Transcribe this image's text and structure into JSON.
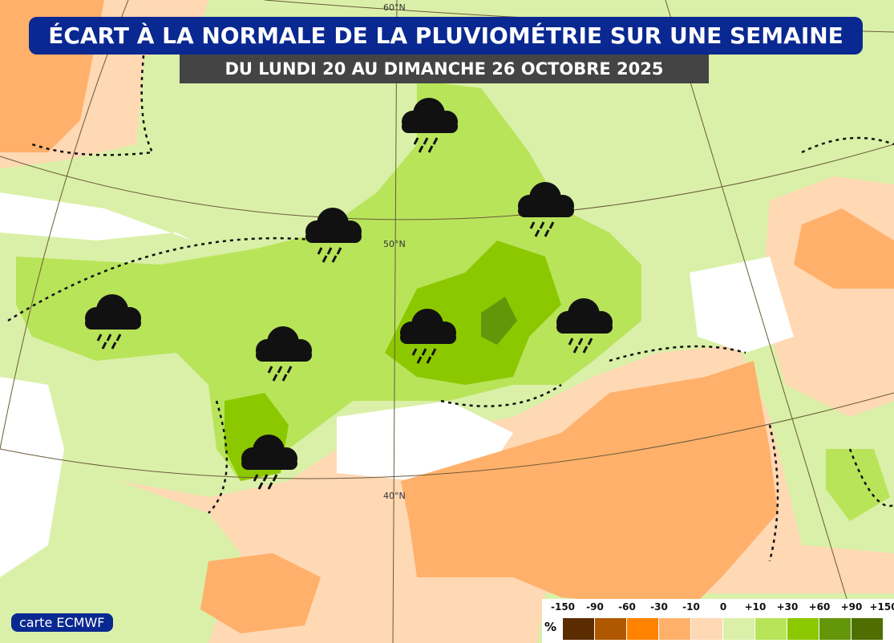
{
  "header": {
    "title": "ÉCART À LA NORMALE DE LA PLUVIOMÉTRIE SUR UNE SEMAINE",
    "subtitle": "DU LUNDI 20 AU DIMANCHE 26 OCTOBRE 2025"
  },
  "source": "carte ECMWF",
  "map": {
    "latitude_labels": [
      "60°N",
      "50°N",
      "40°N"
    ],
    "icon": "rain-cloud-icon",
    "rain_icon_count": 8
  },
  "legend": {
    "unit": "%",
    "labels": [
      "-150",
      "-90",
      "-60",
      "-30",
      "-10",
      "0",
      "+10",
      "+30",
      "+60",
      "+90",
      "+150"
    ],
    "colors": [
      "#5a2c00",
      "#b05800",
      "#ff8200",
      "#ffb06a",
      "#ffd8b4",
      "#daf0a8",
      "#b8e45a",
      "#8cc800",
      "#64960a",
      "#4f6e00"
    ]
  }
}
